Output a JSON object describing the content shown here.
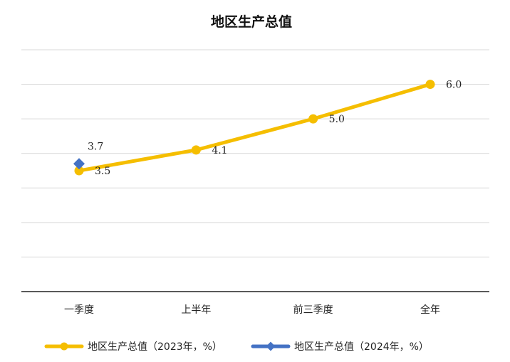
{
  "chart_data": {
    "type": "line",
    "title": "地区生产总值",
    "categories": [
      "一季度",
      "上半年",
      "前三季度",
      "全年"
    ],
    "ylim": [
      0,
      7
    ],
    "grid": true,
    "legend_position": "bottom",
    "series": [
      {
        "name": "地区生产总值（2023年，%）",
        "values": [
          3.5,
          4.1,
          5.0,
          6.0
        ],
        "labels": [
          "3.5",
          "4.1",
          "5.0",
          "6.0"
        ],
        "color": "#F5BE00",
        "marker": "circle"
      },
      {
        "name": "地区生产总值（2024年，%）",
        "values": [
          3.7,
          null,
          null,
          null
        ],
        "labels": [
          "3.7",
          null,
          null,
          null
        ],
        "color": "#4472C4",
        "marker": "diamond"
      }
    ]
  }
}
